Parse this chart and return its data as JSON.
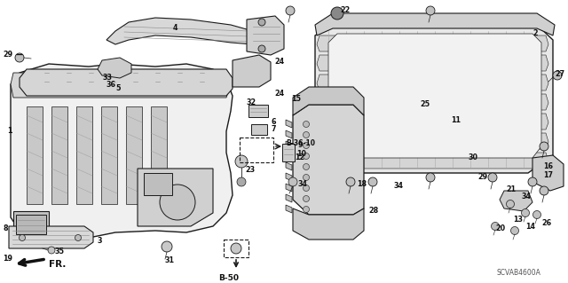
{
  "bg_color": "#ffffff",
  "fig_width": 6.4,
  "fig_height": 3.19,
  "dpi": 100,
  "line_color": "#1a1a1a",
  "gray_fill": "#d8d8d8",
  "light_gray": "#ebebeb",
  "label_fontsize": 5.8,
  "ref_label_fontsize": 6.5,
  "watermark": "SCVAB4600A"
}
